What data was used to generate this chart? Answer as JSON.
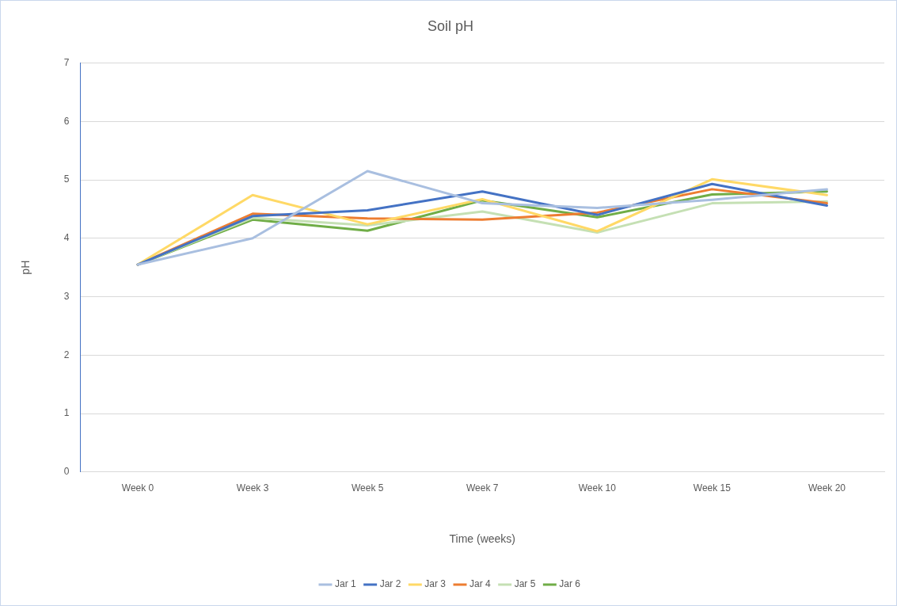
{
  "chart_data": {
    "type": "line",
    "title": "Soil pH",
    "xlabel": "Time (weeks)",
    "ylabel": "pH",
    "categories": [
      "Week 0",
      "Week 3",
      "Week 5",
      "Week 7",
      "Week 10",
      "Week 15",
      "Week 20"
    ],
    "series": [
      {
        "name": "Jar 1",
        "color": "#a9bfe0",
        "values": [
          3.55,
          4.0,
          5.15,
          4.6,
          4.52,
          4.66,
          4.84
        ]
      },
      {
        "name": "Jar 2",
        "color": "#4472c4",
        "values": [
          3.55,
          4.38,
          4.48,
          4.8,
          4.4,
          4.93,
          4.56
        ]
      },
      {
        "name": "Jar 3",
        "color": "#ffd966",
        "values": [
          3.55,
          4.74,
          4.24,
          4.67,
          4.12,
          5.01,
          4.74
        ]
      },
      {
        "name": "Jar 4",
        "color": "#ed7d31",
        "values": [
          3.55,
          4.42,
          4.34,
          4.32,
          4.44,
          4.84,
          4.6
        ]
      },
      {
        "name": "Jar 5",
        "color": "#c5e0b4",
        "values": [
          3.55,
          4.35,
          4.22,
          4.46,
          4.1,
          4.6,
          4.63
        ]
      },
      {
        "name": "Jar 6",
        "color": "#70ad47",
        "values": [
          3.55,
          4.32,
          4.13,
          4.65,
          4.36,
          4.75,
          4.8
        ]
      }
    ],
    "ylim": [
      0,
      7
    ],
    "yticks": [
      0,
      1,
      2,
      3,
      4,
      5,
      6,
      7
    ],
    "grid": "y",
    "legend": "bottom",
    "marker": "none",
    "line_style": "solid"
  }
}
